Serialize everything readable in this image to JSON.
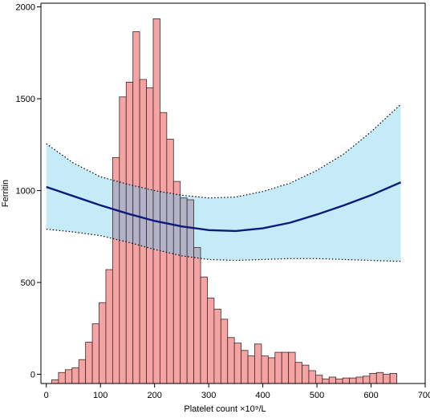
{
  "chart_data": {
    "type": "bar",
    "xlabel": "Platelet count  ×10⁹/L",
    "ylabel": "Ferritin",
    "xlim": [
      -10,
      700
    ],
    "ylim": [
      -50,
      2020
    ],
    "x_ticks": [
      0,
      100,
      200,
      300,
      400,
      500,
      600,
      700
    ],
    "y_ticks": [
      0,
      500,
      1000,
      1500,
      2000
    ],
    "grid": false,
    "legend": "none",
    "colors": {
      "bar_fill": "#f5a3a3",
      "bar_stroke": "#3a2a2a",
      "ci_band": "#c5ebf9",
      "overlap": "#b2b3c9",
      "curve": "#0d1a7a",
      "ci_border": "#000000"
    },
    "histogram": {
      "bin_width": 12.5,
      "bins": [
        {
          "x_start": 10,
          "count": -30
        },
        {
          "x_start": 22.5,
          "count": 10
        },
        {
          "x_start": 35,
          "count": 25
        },
        {
          "x_start": 47.5,
          "count": 35
        },
        {
          "x_start": 60,
          "count": 80
        },
        {
          "x_start": 72.5,
          "count": 175
        },
        {
          "x_start": 85,
          "count": 275
        },
        {
          "x_start": 97.5,
          "count": 390
        },
        {
          "x_start": 110,
          "count": 570
        },
        {
          "x_start": 122.5,
          "count": 1180
        },
        {
          "x_start": 135,
          "count": 1510
        },
        {
          "x_start": 147.5,
          "count": 1590
        },
        {
          "x_start": 160,
          "count": 1865
        },
        {
          "x_start": 172.5,
          "count": 1605
        },
        {
          "x_start": 185,
          "count": 1560
        },
        {
          "x_start": 197.5,
          "count": 1935
        },
        {
          "x_start": 210,
          "count": 1425
        },
        {
          "x_start": 222.5,
          "count": 1280
        },
        {
          "x_start": 235,
          "count": 1050
        },
        {
          "x_start": 247.5,
          "count": 960
        },
        {
          "x_start": 260,
          "count": 950
        },
        {
          "x_start": 272.5,
          "count": 690
        },
        {
          "x_start": 285,
          "count": 530
        },
        {
          "x_start": 297.5,
          "count": 415
        },
        {
          "x_start": 310,
          "count": 355
        },
        {
          "x_start": 322.5,
          "count": 300
        },
        {
          "x_start": 335,
          "count": 200
        },
        {
          "x_start": 347.5,
          "count": 170
        },
        {
          "x_start": 360,
          "count": 130
        },
        {
          "x_start": 372.5,
          "count": 100
        },
        {
          "x_start": 385,
          "count": 165
        },
        {
          "x_start": 397.5,
          "count": 100
        },
        {
          "x_start": 410,
          "count": 90
        },
        {
          "x_start": 422.5,
          "count": 120
        },
        {
          "x_start": 435,
          "count": 120
        },
        {
          "x_start": 447.5,
          "count": 120
        },
        {
          "x_start": 460,
          "count": 65
        },
        {
          "x_start": 472.5,
          "count": 50
        },
        {
          "x_start": 485,
          "count": 20
        },
        {
          "x_start": 497.5,
          "count": -5
        },
        {
          "x_start": 510,
          "count": -25
        },
        {
          "x_start": 522.5,
          "count": -15
        },
        {
          "x_start": 535,
          "count": -25
        },
        {
          "x_start": 547.5,
          "count": -20
        },
        {
          "x_start": 560,
          "count": -20
        },
        {
          "x_start": 572.5,
          "count": -15
        },
        {
          "x_start": 585,
          "count": -10
        },
        {
          "x_start": 597.5,
          "count": 5
        },
        {
          "x_start": 610,
          "count": 10
        },
        {
          "x_start": 622.5,
          "count": 0
        },
        {
          "x_start": 635,
          "count": 5
        }
      ]
    },
    "fit_curve": {
      "x": [
        0,
        50,
        100,
        150,
        200,
        250,
        300,
        350,
        400,
        450,
        500,
        550,
        600,
        655
      ],
      "y": [
        1020,
        970,
        920,
        875,
        835,
        805,
        785,
        780,
        795,
        825,
        870,
        920,
        975,
        1045
      ],
      "lower": [
        790,
        775,
        755,
        720,
        680,
        645,
        625,
        620,
        625,
        630,
        630,
        625,
        620,
        615
      ],
      "upper": [
        1255,
        1150,
        1075,
        1035,
        1000,
        975,
        960,
        965,
        995,
        1040,
        1110,
        1200,
        1320,
        1470
      ]
    }
  }
}
